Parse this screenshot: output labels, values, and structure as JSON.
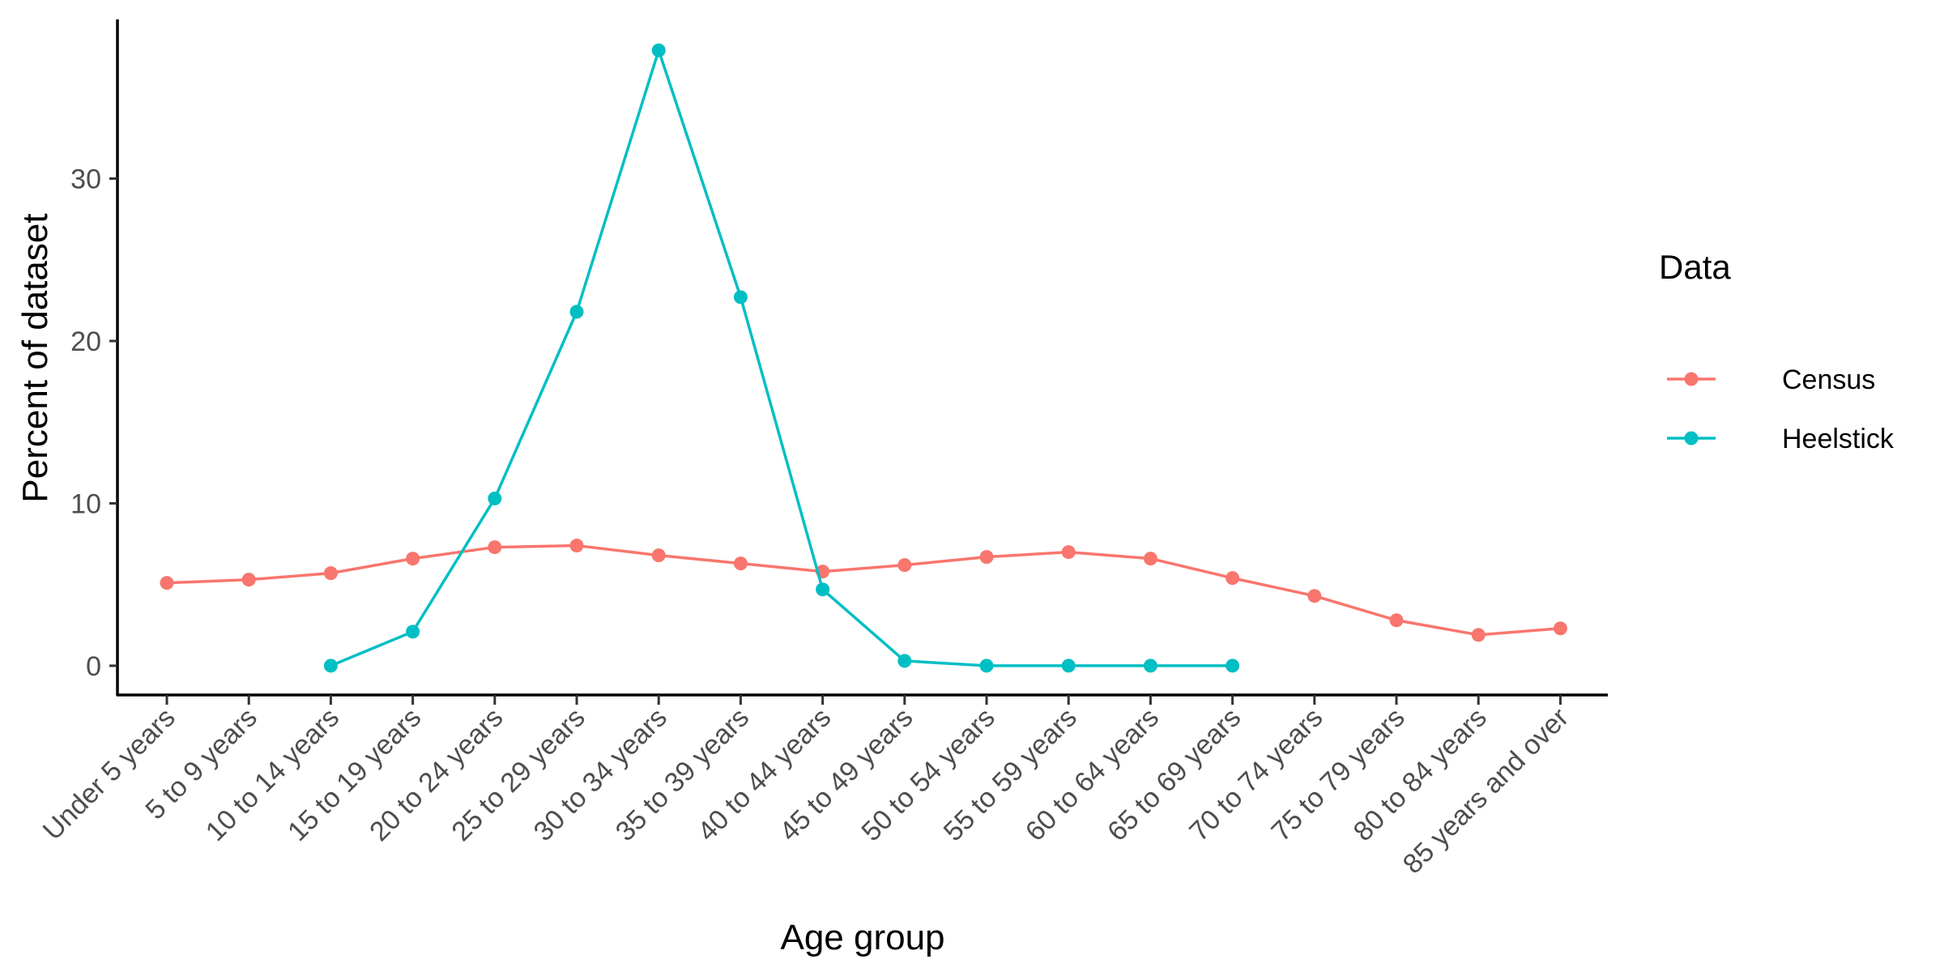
{
  "chart_data": {
    "type": "line",
    "title": "",
    "xlabel": "Age group",
    "ylabel": "Percent of dataset",
    "categories": [
      "Under 5 years",
      "5 to 9 years",
      "10 to 14 years",
      "15 to 19 years",
      "20 to 24 years",
      "25 to 29 years",
      "30 to 34 years",
      "35 to 39 years",
      "40 to 44 years",
      "45 to 49 years",
      "50 to 54 years",
      "55 to 59 years",
      "60 to 64 years",
      "65 to 69 years",
      "70 to 74 years",
      "75 to 79 years",
      "80 to 84 years",
      "85 years and over"
    ],
    "ylim": [
      -1.8,
      39.8
    ],
    "yticks": [
      0,
      10,
      20,
      30
    ],
    "grid": false,
    "legend": {
      "title": "Data",
      "position": "right"
    },
    "series": [
      {
        "name": "Census",
        "color": "#F8766D",
        "values": [
          5.1,
          5.3,
          5.7,
          6.6,
          7.3,
          7.4,
          6.8,
          6.3,
          5.8,
          6.2,
          6.7,
          7.0,
          6.6,
          5.4,
          4.3,
          2.8,
          1.9,
          2.3
        ]
      },
      {
        "name": "Heelstick",
        "color": "#00BFC4",
        "values": [
          null,
          null,
          0.0,
          2.1,
          10.3,
          21.8,
          37.9,
          22.7,
          4.7,
          0.3,
          0.0,
          0.0,
          0.0,
          0.0,
          null,
          null,
          null,
          null
        ]
      }
    ]
  }
}
